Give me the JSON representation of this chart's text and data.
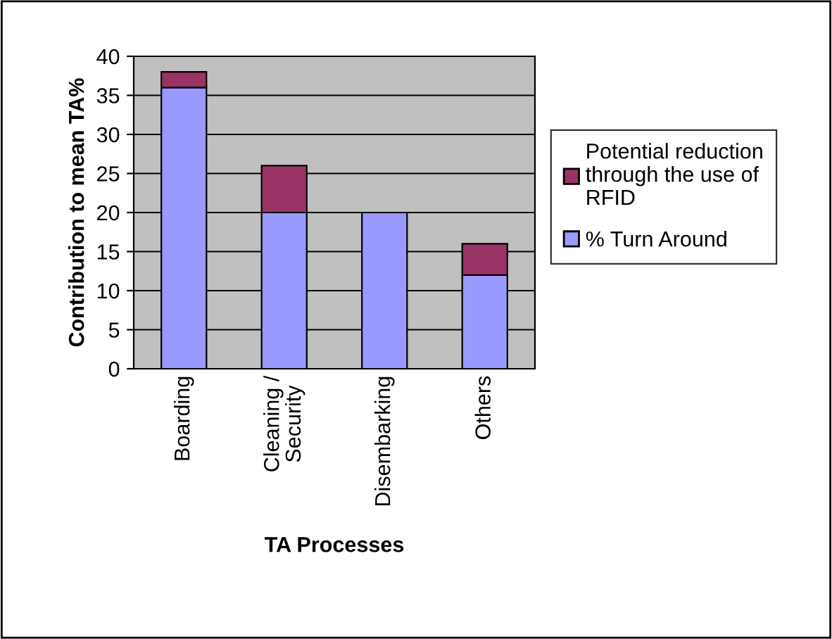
{
  "chart_data": {
    "type": "bar",
    "stacked": true,
    "xlabel": "TA Processes",
    "ylabel": "Contribution to mean TA%",
    "categories": [
      "Boarding",
      "Cleaning /\nSecurity",
      "Disembarking",
      "Others"
    ],
    "series": [
      {
        "name": "% Turn Around",
        "color": "#9999ff",
        "values": [
          36,
          20,
          20,
          12
        ]
      },
      {
        "name": "Potential reduction\nthrough the use of\nRFID",
        "color": "#993366",
        "values": [
          2,
          6,
          0,
          4
        ]
      }
    ],
    "ylim": [
      0,
      40
    ],
    "yticks": [
      0,
      5,
      10,
      15,
      20,
      25,
      30,
      35,
      40
    ],
    "grid": "y",
    "legend": "right"
  }
}
